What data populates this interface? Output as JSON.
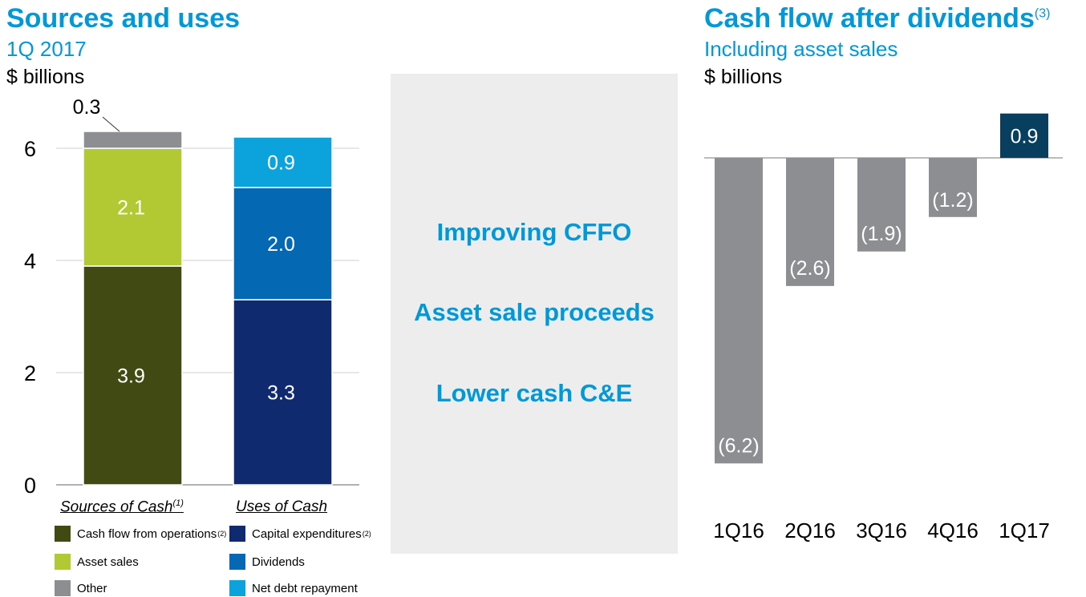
{
  "left_panel": {
    "title": "Sources and uses",
    "subtitle": "1Q 2017",
    "units": "$ billions",
    "categories": [
      {
        "label": "Sources of Cash",
        "footnote": "(1)"
      },
      {
        "label": "Uses of Cash",
        "footnote": ""
      }
    ],
    "legend": [
      {
        "label": "Cash flow from operations",
        "footnote": "(2)",
        "color": "#404a12"
      },
      {
        "label": "Capital expenditures",
        "footnote": "(2)",
        "color": "#0f2a6e"
      },
      {
        "label": "Asset sales",
        "footnote": "",
        "color": "#b3c934"
      },
      {
        "label": "Dividends",
        "footnote": "",
        "color": "#0568b3"
      },
      {
        "label": "Other",
        "footnote": "",
        "color": "#8c8e91"
      },
      {
        "label": "Net debt repayment",
        "footnote": "",
        "color": "#0ca3dd"
      }
    ]
  },
  "middle_panel": {
    "messages": [
      "Improving CFFO",
      "Asset sale proceeds",
      "Lower cash C&E"
    ]
  },
  "right_panel": {
    "title": "Cash flow after dividends",
    "title_footnote": "(3)",
    "subtitle": "Including asset sales",
    "units": "$ billions"
  },
  "chart_data": [
    {
      "type": "bar",
      "stacked": true,
      "title": "Sources and uses",
      "subtitle": "1Q 2017",
      "ylabel": "$ billions",
      "ylim": [
        0,
        6.2
      ],
      "yticks": [
        0,
        2,
        4,
        6
      ],
      "grid": true,
      "categories": [
        "Sources of Cash",
        "Uses of Cash"
      ],
      "stacks": [
        {
          "category": "Sources of Cash",
          "segments": [
            {
              "name": "Cash flow from operations",
              "value": 3.9,
              "label": "3.9",
              "color": "#404a12"
            },
            {
              "name": "Asset sales",
              "value": 2.1,
              "label": "2.1",
              "color": "#b3c934"
            },
            {
              "name": "Other",
              "value": 0.3,
              "label": "0.3",
              "color": "#8c8e91"
            }
          ]
        },
        {
          "category": "Uses of Cash",
          "segments": [
            {
              "name": "Capital expenditures",
              "value": 3.3,
              "label": "3.3",
              "color": "#0f2a6e"
            },
            {
              "name": "Dividends",
              "value": 2.0,
              "label": "2.0",
              "color": "#0568b3"
            },
            {
              "name": "Net debt repayment",
              "value": 0.9,
              "label": "0.9",
              "color": "#0ca3dd"
            }
          ]
        }
      ]
    },
    {
      "type": "bar",
      "title": "Cash flow after dividends",
      "subtitle": "Including asset sales",
      "ylabel": "$ billions",
      "categories": [
        "1Q16",
        "2Q16",
        "3Q16",
        "4Q16",
        "1Q17"
      ],
      "values": [
        -6.2,
        -2.6,
        -1.9,
        -1.2,
        0.9
      ],
      "labels": [
        "(6.2)",
        "(2.6)",
        "(1.9)",
        "(1.2)",
        "0.9"
      ],
      "colors": [
        "#8c8e91",
        "#8c8e91",
        "#8c8e91",
        "#8c8e91",
        "#083f5f"
      ],
      "ylim": [
        -6.2,
        0.9
      ]
    }
  ]
}
